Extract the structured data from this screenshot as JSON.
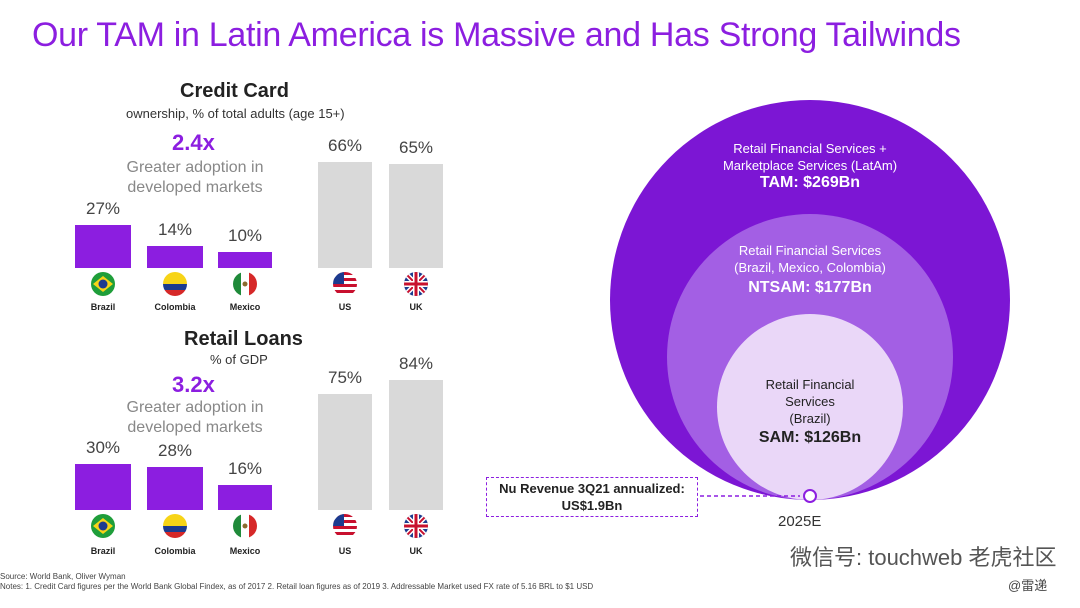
{
  "title": "Our TAM in Latin America is Massive and Has Strong Tailwinds",
  "colors": {
    "accent": "#8c1ee0",
    "bar_latam": "#8c1ee0",
    "bar_developed": "#d9d9d9",
    "circle_outer": "#7c16d4",
    "circle_mid": "#a35fe4",
    "circle_inner": "#ead7f8"
  },
  "chart_data": [
    {
      "type": "bar",
      "title": "Credit Card",
      "subtitle": "ownership, % of total adults (age 15+)",
      "multiplier": "2.4x",
      "multiplier_note": "Greater adoption in developed markets",
      "categories": [
        "Brazil",
        "Colombia",
        "Mexico",
        "US",
        "UK"
      ],
      "values": [
        27,
        14,
        10,
        66,
        65
      ],
      "labels": [
        "27%",
        "14%",
        "10%",
        "66%",
        "65%"
      ],
      "flag_icons": [
        "brazil-flag-icon",
        "colombia-flag-icon",
        "mexico-flag-icon",
        "us-flag-icon",
        "uk-flag-icon"
      ]
    },
    {
      "type": "bar",
      "title": "Retail Loans",
      "subtitle": "% of GDP",
      "multiplier": "3.2x",
      "multiplier_note": "Greater adoption in developed markets",
      "categories": [
        "Brazil",
        "Colombia",
        "Mexico",
        "US",
        "UK"
      ],
      "values": [
        30,
        28,
        16,
        75,
        84
      ],
      "labels": [
        "30%",
        "28%",
        "16%",
        "75%",
        "84%"
      ],
      "flag_icons": [
        "brazil-flag-icon",
        "colombia-flag-icon",
        "mexico-flag-icon",
        "us-flag-icon",
        "uk-flag-icon"
      ]
    },
    {
      "type": "nested-circles",
      "year": "2025E",
      "levels": [
        {
          "lines": [
            "Retail Financial Services +",
            "Marketplace Services (LatAm)"
          ],
          "value_label": "TAM: $269Bn",
          "value": 269
        },
        {
          "lines": [
            "Retail Financial Services",
            "(Brazil, Mexico, Colombia)"
          ],
          "value_label": "NTSAM: $177Bn",
          "value": 177
        },
        {
          "lines": [
            "Retail Financial",
            "Services",
            "(Brazil)"
          ],
          "value_label": "SAM: $126Bn",
          "value": 126
        }
      ],
      "callout": {
        "line1": "Nu Revenue 3Q21 annualized:",
        "line2": "US$1.9Bn"
      }
    }
  ],
  "footnotes": {
    "source": "Source: World Bank, Oliver Wyman",
    "notes": "Notes: 1. Credit Card figures per the World Bank Global Findex, as of 2017 2. Retail loan figures as of 2019 3. Addressable Market used FX rate of 5.16 BRL to $1 USD"
  },
  "watermark": {
    "wechat": "微信号: touchweb",
    "brand": "老虎社区",
    "handle": "@雷递"
  }
}
